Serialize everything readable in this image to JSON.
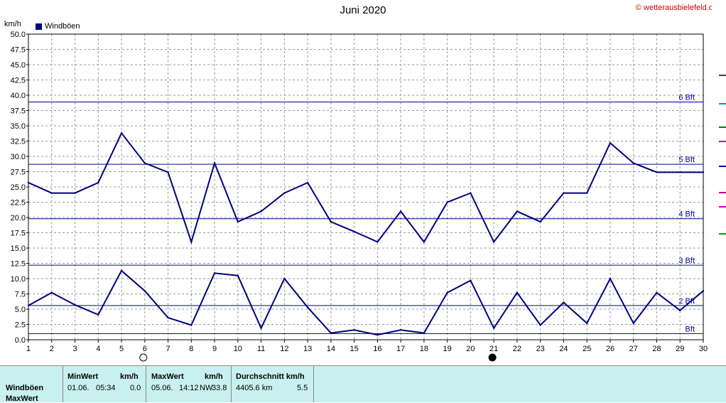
{
  "header": {
    "title": "Juni 2020",
    "copyright": "© wetterausbielefeld.de",
    "unit": "km/h"
  },
  "chart_data": {
    "type": "line",
    "title": "Juni 2020",
    "ylabel": "km/h",
    "ylim": [
      0,
      50
    ],
    "xlim": [
      1,
      30
    ],
    "y_ticks": [
      "0.0",
      "2.5",
      "5.0",
      "7.5",
      "10.0",
      "12.5",
      "15.0",
      "17.5",
      "20.0",
      "22.5",
      "25.0",
      "27.5",
      "30.0",
      "32.5",
      "35.0",
      "37.5",
      "40.0",
      "42.5",
      "45.0",
      "47.5",
      "50.0"
    ],
    "x_ticks": [
      "1",
      "2",
      "3",
      "4",
      "5",
      "6",
      "7",
      "8",
      "9",
      "10",
      "11",
      "12",
      "13",
      "14",
      "15",
      "16",
      "17",
      "18",
      "19",
      "20",
      "21",
      "22",
      "23",
      "24",
      "25",
      "26",
      "27",
      "28",
      "29",
      "30"
    ],
    "grid": true,
    "legend": {
      "position": "top-left",
      "entries": [
        "Windböen"
      ]
    },
    "beaufort_lines": [
      {
        "label": "Bft",
        "value": 1.0
      },
      {
        "label": "2 Bft",
        "value": 5.6
      },
      {
        "label": "3 Bft",
        "value": 12.2
      },
      {
        "label": "4 Bft",
        "value": 19.8
      },
      {
        "label": "5 Bft",
        "value": 28.7
      },
      {
        "label": "6 Bft",
        "value": 38.9
      }
    ],
    "series": [
      {
        "name": "Windböen",
        "color": "#000080",
        "x": [
          1,
          2,
          3,
          4,
          5,
          6,
          7,
          8,
          9,
          10,
          11,
          12,
          13,
          14,
          15,
          16,
          17,
          18,
          19,
          20,
          21,
          22,
          23,
          24,
          25,
          26,
          27,
          28,
          29,
          30
        ],
        "values": [
          25.7,
          24.0,
          24.0,
          25.7,
          33.8,
          28.9,
          27.4,
          16.0,
          28.9,
          19.3,
          21.0,
          24.0,
          25.7,
          19.3,
          17.7,
          16.0,
          21.0,
          16.0,
          22.5,
          24.0,
          16.0,
          21.0,
          19.3,
          24.0,
          24.0,
          32.2,
          28.9,
          27.4,
          27.4,
          27.4
        ]
      },
      {
        "color": "#000080",
        "x": [
          1,
          2,
          3,
          4,
          5,
          6,
          7,
          8,
          9,
          10,
          11,
          12,
          13,
          14,
          15,
          16,
          17,
          18,
          19,
          20,
          21,
          22,
          23,
          24,
          25,
          26,
          27,
          28,
          29,
          30
        ],
        "values": [
          5.6,
          7.7,
          5.7,
          4.1,
          11.3,
          8.0,
          3.6,
          2.4,
          10.9,
          10.5,
          1.9,
          10.0,
          5.3,
          1.1,
          1.6,
          0.8,
          1.6,
          1.1,
          7.7,
          9.7,
          1.9,
          7.7,
          2.4,
          6.1,
          2.7,
          10.0,
          2.7,
          7.7,
          4.8,
          8.0
        ]
      }
    ],
    "moon_phases": [
      {
        "day": 6,
        "phase": "full"
      },
      {
        "day": 21,
        "phase": "new"
      }
    ]
  },
  "table": {
    "row_labels": [
      "Windböen",
      "MaxWert"
    ],
    "min": {
      "header": "MinWert",
      "unit": "km/h",
      "date": "01.06.",
      "time": "05:34",
      "value": "0.0"
    },
    "max": {
      "header": "MaxWert",
      "unit": "km/h",
      "date": "05.06.",
      "time": "14:12",
      "dir": "NW",
      "value": "33.8"
    },
    "avg": {
      "header": "Durchschnitt km/h",
      "distance": "4405.6 km",
      "value": "5.5"
    }
  },
  "side_colors": [
    "#404040",
    "#00a0a0",
    "#008000",
    "#c000c0",
    "#0000c0",
    "#c00080",
    "#c000c0",
    "#00a000"
  ]
}
